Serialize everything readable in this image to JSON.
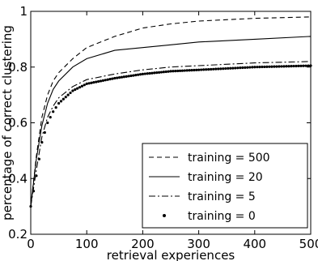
{
  "chart_data": {
    "type": "line",
    "xlabel": "retrieval experiences",
    "ylabel": "percentage of correct clustering",
    "xlim": [
      0,
      500
    ],
    "ylim": [
      0.2,
      1.0
    ],
    "xticks": [
      0,
      100,
      200,
      300,
      400,
      500
    ],
    "yticks": [
      0.2,
      0.4,
      0.6,
      0.8,
      1.0
    ],
    "xtick_labels": [
      "0",
      "100",
      "200",
      "300",
      "400",
      "500"
    ],
    "ytick_labels": [
      "0.2",
      "0.4",
      "0.6",
      "0.8",
      "1"
    ],
    "grid": false,
    "legend_position": "bottom-right",
    "x": [
      0,
      10,
      20,
      30,
      40,
      50,
      75,
      100,
      150,
      200,
      250,
      300,
      400,
      500
    ],
    "series": [
      {
        "name": "training = 500",
        "style": "dashed",
        "values": [
          0.3,
          0.48,
          0.62,
          0.7,
          0.75,
          0.78,
          0.83,
          0.87,
          0.91,
          0.94,
          0.955,
          0.965,
          0.975,
          0.98
        ]
      },
      {
        "name": "training = 20",
        "style": "solid",
        "values": [
          0.3,
          0.47,
          0.59,
          0.67,
          0.72,
          0.75,
          0.8,
          0.83,
          0.86,
          0.87,
          0.88,
          0.89,
          0.9,
          0.91
        ]
      },
      {
        "name": "training = 5",
        "style": "dashdot",
        "values": [
          0.3,
          0.43,
          0.55,
          0.62,
          0.66,
          0.69,
          0.73,
          0.755,
          0.775,
          0.79,
          0.8,
          0.805,
          0.815,
          0.82
        ]
      },
      {
        "name": "training = 0",
        "style": "dotted",
        "values": [
          0.3,
          0.41,
          0.53,
          0.6,
          0.64,
          0.67,
          0.715,
          0.74,
          0.76,
          0.775,
          0.785,
          0.79,
          0.8,
          0.805
        ]
      }
    ]
  }
}
